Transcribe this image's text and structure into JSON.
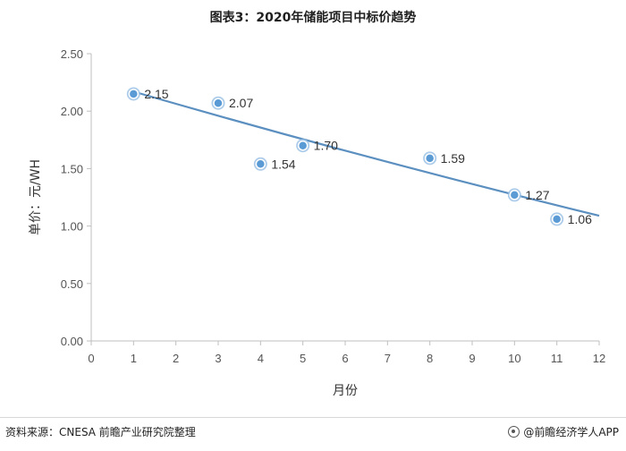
{
  "title": "图表3：2020年储能项目中标价趋势",
  "source": "资料来源：CNESA 前瞻产业研究院整理",
  "brand": "@前瞻经济学人APP",
  "chart_data": {
    "type": "scatter",
    "title": "图表3：2020年储能项目中标价趋势",
    "xlabel": "月份",
    "ylabel": "单价：元/WH",
    "xlim": [
      0,
      12
    ],
    "ylim": [
      0,
      2.5
    ],
    "x_ticks": [
      0,
      1,
      2,
      3,
      4,
      5,
      6,
      7,
      8,
      9,
      10,
      11,
      12
    ],
    "y_ticks": [
      0.0,
      0.5,
      1.0,
      1.5,
      2.0,
      2.5
    ],
    "y_tick_labels": [
      "0.00",
      "0.50",
      "1.00",
      "1.50",
      "2.00",
      "2.50"
    ],
    "x": [
      1,
      3,
      4,
      5,
      8,
      10,
      11
    ],
    "y": [
      2.15,
      2.07,
      1.54,
      1.7,
      1.59,
      1.27,
      1.06
    ],
    "point_labels": [
      "2.15",
      "2.07",
      "1.54",
      "1.70",
      "1.59",
      "1.27",
      "1.06"
    ],
    "trendline": {
      "x_start": 1,
      "y_start": 2.17,
      "x_end": 12,
      "y_end": 1.09
    },
    "grid": false,
    "colors": {
      "point": "#5b9bd5",
      "trend": "#5b8fc0",
      "axis": "#bfbfbf"
    }
  }
}
